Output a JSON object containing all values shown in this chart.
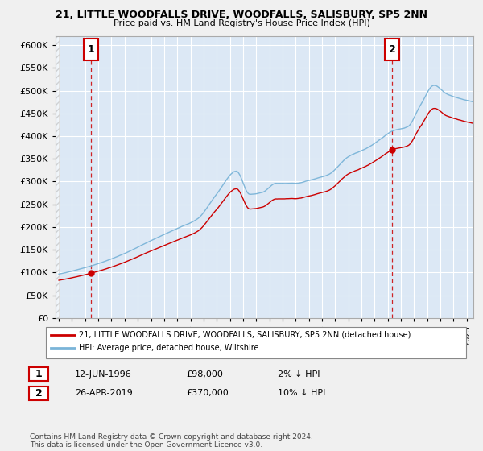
{
  "title1": "21, LITTLE WOODFALLS DRIVE, WOODFALLS, SALISBURY, SP5 2NN",
  "title2": "Price paid vs. HM Land Registry's House Price Index (HPI)",
  "legend_line1": "21, LITTLE WOODFALLS DRIVE, WOODFALLS, SALISBURY, SP5 2NN (detached house)",
  "legend_line2": "HPI: Average price, detached house, Wiltshire",
  "annotation1_date": "12-JUN-1996",
  "annotation1_price": "£98,000",
  "annotation1_hpi": "2% ↓ HPI",
  "annotation2_date": "26-APR-2019",
  "annotation2_price": "£370,000",
  "annotation2_hpi": "10% ↓ HPI",
  "copyright": "Contains HM Land Registry data © Crown copyright and database right 2024.\nThis data is licensed under the Open Government Licence v3.0.",
  "sale1_year": 1996.45,
  "sale1_value": 98000,
  "sale2_year": 2019.32,
  "sale2_value": 370000,
  "ylim_max": 620000,
  "xlim_start": 1993.75,
  "xlim_end": 2025.5,
  "hpi_color": "#7ab4d8",
  "price_color": "#cc0000",
  "fig_bg": "#f0f0f0",
  "plot_bg": "#dce8f5",
  "grid_color": "#ffffff",
  "annotation_box_color": "#cc0000"
}
